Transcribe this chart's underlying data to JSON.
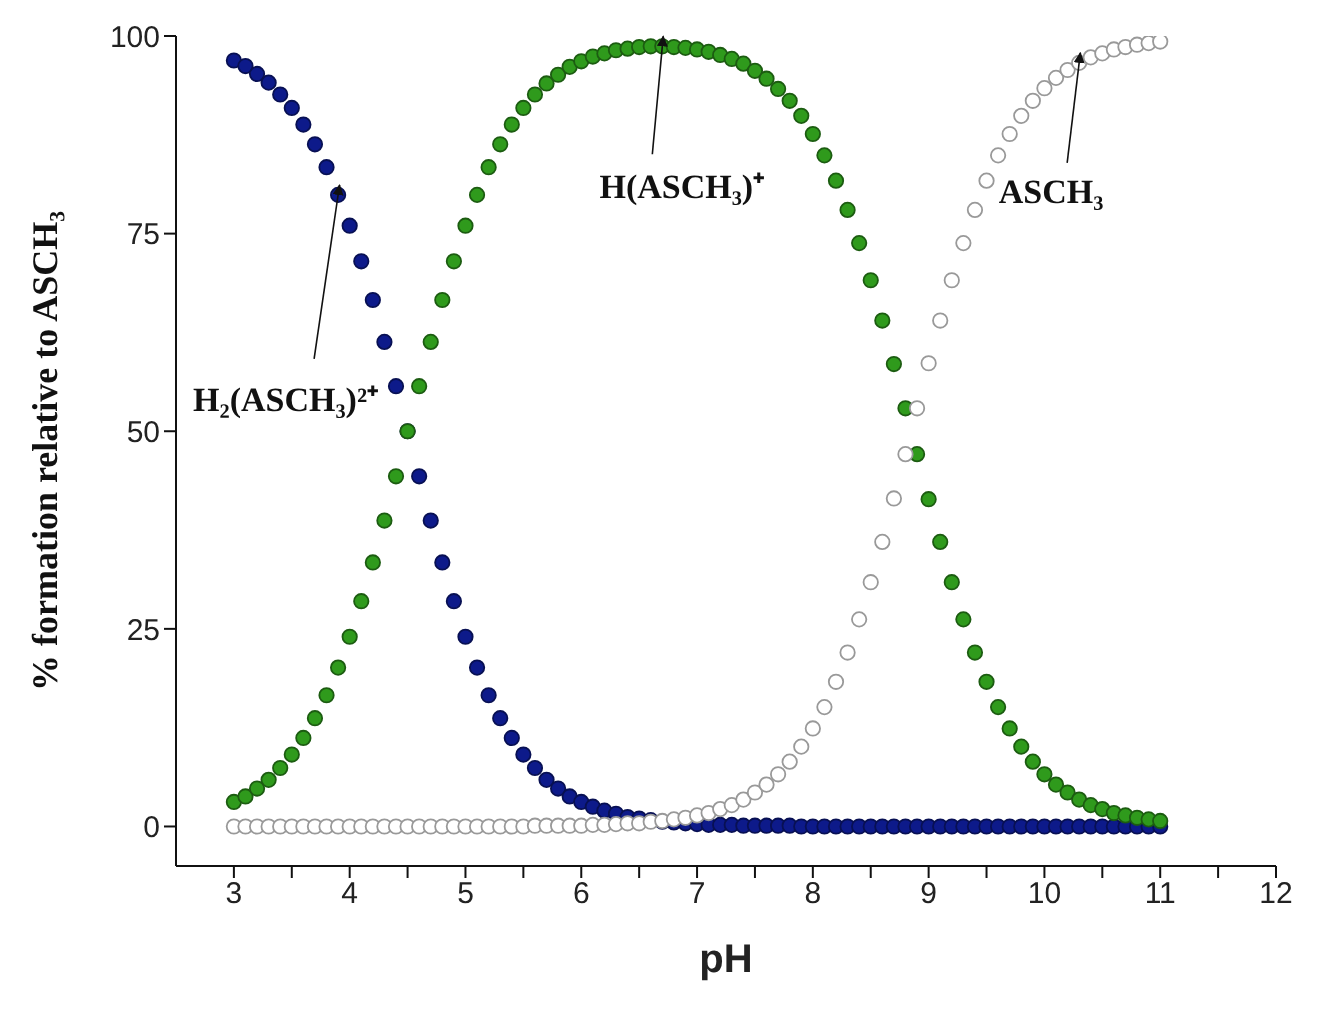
{
  "chart_data": {
    "type": "scatter",
    "xlabel": "pH",
    "ylabel": "% formation relative to ASCH₃",
    "x": [
      3.0,
      3.1,
      3.2,
      3.3,
      3.4,
      3.5,
      3.6,
      3.7,
      3.8,
      3.9,
      4.0,
      4.1,
      4.2,
      4.3,
      4.4,
      4.5,
      4.6,
      4.7,
      4.8,
      4.9,
      5.0,
      5.1,
      5.2,
      5.3,
      5.4,
      5.5,
      5.6,
      5.7,
      5.8,
      5.9,
      6.0,
      6.1,
      6.2,
      6.3,
      6.4,
      6.5,
      6.6,
      6.7,
      6.8,
      6.9,
      7.0,
      7.1,
      7.2,
      7.3,
      7.4,
      7.5,
      7.6,
      7.7,
      7.8,
      7.9,
      8.0,
      8.1,
      8.2,
      8.3,
      8.4,
      8.5,
      8.6,
      8.7,
      8.8,
      8.9,
      9.0,
      9.1,
      9.2,
      9.3,
      9.4,
      9.5,
      9.6,
      9.7,
      9.8,
      9.9,
      10.0,
      10.1,
      10.2,
      10.3,
      10.4,
      10.5,
      10.6,
      10.7,
      10.8,
      10.9,
      11.0
    ],
    "series": [
      {
        "name": "H₂(ASCH₃)²⁺",
        "color": "#0d1a8a",
        "values": [
          96.9,
          96.2,
          95.2,
          94.1,
          92.6,
          90.9,
          88.8,
          86.3,
          83.4,
          79.9,
          76.0,
          71.5,
          66.6,
          61.3,
          55.7,
          50.0,
          44.3,
          38.7,
          33.4,
          28.5,
          24.0,
          20.1,
          16.6,
          13.7,
          11.2,
          9.1,
          7.4,
          5.9,
          4.8,
          3.8,
          3.1,
          2.5,
          2.0,
          1.6,
          1.2,
          1.0,
          0.8,
          0.6,
          0.5,
          0.4,
          0.3,
          0.2,
          0.2,
          0.2,
          0.1,
          0.1,
          0.1,
          0.1,
          0.1,
          0,
          0,
          0,
          0,
          0,
          0,
          0,
          0,
          0,
          0,
          0,
          0,
          0,
          0,
          0,
          0,
          0,
          0,
          0,
          0,
          0,
          0,
          0,
          0,
          0,
          0,
          0,
          0,
          0,
          0,
          0,
          0
        ]
      },
      {
        "name": "H(ASCH₃)⁺",
        "color": "#2f9a1c",
        "values": [
          3.1,
          3.8,
          4.8,
          5.9,
          7.4,
          9.1,
          11.2,
          13.7,
          16.6,
          20.1,
          24.0,
          28.5,
          33.4,
          38.7,
          44.3,
          50.0,
          55.7,
          61.3,
          66.6,
          71.5,
          76.0,
          79.9,
          83.4,
          86.3,
          88.8,
          90.9,
          92.6,
          94.0,
          95.1,
          96.1,
          96.8,
          97.4,
          97.8,
          98.2,
          98.4,
          98.6,
          98.7,
          98.7,
          98.6,
          98.5,
          98.3,
          98.0,
          97.6,
          97.1,
          96.5,
          95.6,
          94.6,
          93.3,
          91.8,
          89.9,
          87.6,
          84.9,
          81.7,
          78.0,
          73.8,
          69.1,
          64.0,
          58.5,
          52.9,
          47.1,
          41.4,
          36.0,
          30.9,
          26.2,
          22.0,
          18.3,
          15.1,
          12.4,
          10.1,
          8.2,
          6.6,
          5.3,
          4.3,
          3.4,
          2.7,
          2.2,
          1.7,
          1.4,
          1.1,
          0.9,
          0.7
        ]
      },
      {
        "name": "ASCH₃",
        "color": "#ffffff",
        "values": [
          0,
          0,
          0,
          0,
          0,
          0,
          0,
          0,
          0,
          0,
          0,
          0,
          0,
          0,
          0,
          0,
          0,
          0,
          0,
          0,
          0,
          0,
          0,
          0,
          0,
          0.0,
          0.1,
          0.1,
          0.1,
          0.1,
          0.1,
          0.2,
          0.2,
          0.3,
          0.4,
          0.4,
          0.6,
          0.7,
          0.9,
          1.1,
          1.4,
          1.7,
          2.2,
          2.7,
          3.4,
          4.3,
          5.3,
          6.6,
          8.2,
          10.1,
          12.4,
          15.1,
          18.3,
          22.0,
          26.2,
          30.9,
          36.0,
          41.5,
          47.1,
          52.9,
          58.6,
          64.0,
          69.1,
          73.8,
          78.0,
          81.7,
          84.9,
          87.6,
          89.9,
          91.8,
          93.4,
          94.7,
          95.7,
          96.6,
          97.3,
          97.8,
          98.3,
          98.6,
          98.9,
          99.1,
          99.3
        ]
      }
    ],
    "xlim": [
      2.5,
      12
    ],
    "xticks": [
      3,
      {
        "value": 3.5,
        "label": null
      },
      4,
      {
        "value": 4.5,
        "label": null
      },
      5,
      {
        "value": 5.5,
        "label": null
      },
      6,
      {
        "value": 6.5,
        "label": null
      },
      7,
      {
        "value": 7.5,
        "label": null
      },
      8,
      {
        "value": 8.5,
        "label": null
      },
      9,
      {
        "value": 9.5,
        "label": null
      },
      10,
      {
        "value": 10.5,
        "label": null
      },
      11,
      {
        "value": 11.5,
        "label": null
      },
      12
    ],
    "ylim": [
      -5,
      100
    ],
    "yticks": [
      0,
      25,
      50,
      75,
      100
    ],
    "marker": "circle",
    "grid": false,
    "legend": false
  }
}
